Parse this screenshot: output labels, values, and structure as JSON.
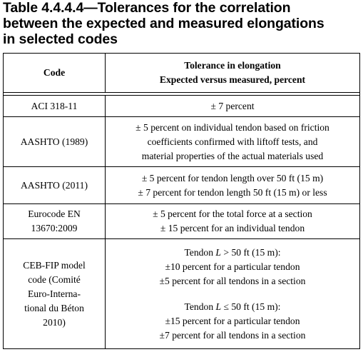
{
  "caption": {
    "lines": [
      "Table 4.4.4.4—Tolerances for the correlation",
      "between the expected and measured elongations",
      "in selected codes"
    ]
  },
  "table": {
    "header": {
      "code": "Code",
      "tolerance_line1": "Tolerance in elongation",
      "tolerance_line2": "Expected versus measured, percent"
    },
    "rows": [
      {
        "code": [
          "ACI 318-11"
        ],
        "tolerance": [
          "± 7 percent"
        ]
      },
      {
        "code": [
          "AASHTO (1989)"
        ],
        "tolerance": [
          "± 5 percent on individual tendon based on friction",
          "coefficients confirmed with liftoff tests, and",
          "material properties of the actual materials used"
        ]
      },
      {
        "code": [
          "AASHTO (2011)"
        ],
        "tolerance": [
          "± 5 percent for tendon length over 50 ft (15 m)",
          "± 7 percent for tendon length 50 ft (15 m) or less"
        ]
      },
      {
        "code": [
          "Eurocode EN",
          "13670:2009"
        ],
        "tolerance": [
          "± 5 percent for the total force at a section",
          "± 15 percent for an individual tendon"
        ]
      },
      {
        "code": [
          "CEB-FIP model",
          "code (Comité",
          "Euro-Interna-",
          "tional du Béton",
          "2010)"
        ],
        "group1": {
          "prefix": "Tendon ",
          "var": "L",
          "condition": " > 50 ft (15 m):",
          "lines": [
            "±10 percent for a particular tendon",
            "±5 percent for all tendons in a section"
          ]
        },
        "group2": {
          "prefix": "Tendon ",
          "var": "L",
          "condition": " ≤ 50 ft (15 m):",
          "lines": [
            "±15 percent for a particular tendon",
            "±7 percent for all tendons in a section"
          ]
        }
      }
    ]
  }
}
